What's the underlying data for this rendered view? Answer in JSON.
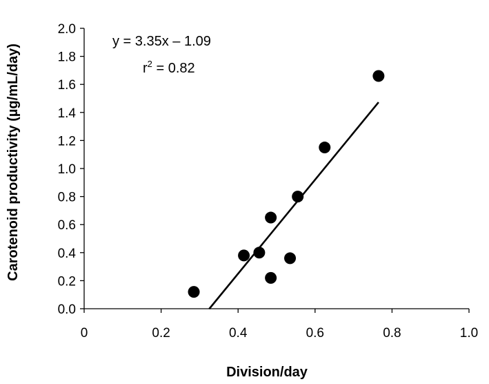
{
  "chart_data": {
    "type": "scatter",
    "title": "",
    "xlabel": "Division/day",
    "ylabel": "Carotenoid productivity (µg/mL/day)",
    "xlim": [
      0,
      1.0
    ],
    "ylim": [
      0,
      2.0
    ],
    "x_ticks": [
      "0",
      "0.2",
      "0.4",
      "0.6",
      "0.8",
      "1.0"
    ],
    "y_ticks": [
      "0.0",
      "0.2",
      "0.4",
      "0.6",
      "0.8",
      "1.0",
      "1.2",
      "1.4",
      "1.6",
      "1.8",
      "2.0"
    ],
    "grid": false,
    "legend": "none",
    "points": [
      {
        "x": 0.285,
        "y": 0.12
      },
      {
        "x": 0.415,
        "y": 0.38
      },
      {
        "x": 0.455,
        "y": 0.4
      },
      {
        "x": 0.485,
        "y": 0.22
      },
      {
        "x": 0.485,
        "y": 0.65
      },
      {
        "x": 0.535,
        "y": 0.36
      },
      {
        "x": 0.555,
        "y": 0.8
      },
      {
        "x": 0.625,
        "y": 1.15
      },
      {
        "x": 0.765,
        "y": 1.66
      }
    ],
    "trendline": {
      "slope": 3.35,
      "intercept": -1.09,
      "x_range": [
        0.325,
        0.765
      ]
    },
    "annotations": {
      "equation": "y = 3.35x – 1.09",
      "r_squared_label": "r",
      "r_squared_sup": "2",
      "r_squared_value": " = 0.82"
    },
    "colors": {
      "point": "#000000",
      "line": "#000000",
      "axis": "#000000"
    }
  }
}
